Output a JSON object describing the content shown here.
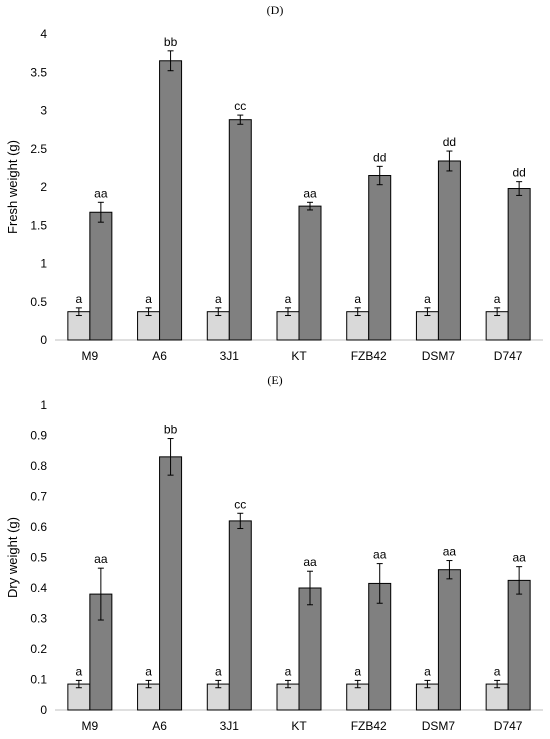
{
  "chart_data": [
    {
      "type": "bar",
      "panel_label": "(D)",
      "ylabel": "Fresh weight (g)",
      "categories": [
        "M9",
        "A6",
        "3J1",
        "KT",
        "FZB42",
        "DSM7",
        "D747"
      ],
      "ylim": [
        0,
        4
      ],
      "yticks": [
        "0",
        "0.5",
        "1",
        "1.5",
        "2",
        "2.5",
        "3",
        "3.5",
        "4"
      ],
      "series": [
        {
          "color": "#d9d9d9",
          "values": [
            0.37,
            0.37,
            0.37,
            0.37,
            0.37,
            0.37,
            0.37
          ],
          "errors": [
            0.05,
            0.05,
            0.05,
            0.05,
            0.05,
            0.05,
            0.05
          ],
          "letters": [
            "a",
            "a",
            "a",
            "a",
            "a",
            "a",
            "a"
          ]
        },
        {
          "color": "#808080",
          "values": [
            1.67,
            3.65,
            2.88,
            1.75,
            2.15,
            2.34,
            1.98
          ],
          "errors": [
            0.13,
            0.13,
            0.06,
            0.05,
            0.12,
            0.13,
            0.09
          ],
          "letters": [
            "aa",
            "bb",
            "cc",
            "aa",
            "dd",
            "dd",
            "dd"
          ]
        }
      ]
    },
    {
      "type": "bar",
      "panel_label": "(E)",
      "ylabel": "Dry weight (g)",
      "categories": [
        "M9",
        "A6",
        "3J1",
        "KT",
        "FZB42",
        "DSM7",
        "D747"
      ],
      "ylim": [
        0,
        1
      ],
      "yticks": [
        "0",
        "0.1",
        "0.2",
        "0.3",
        "0.4",
        "0.5",
        "0.6",
        "0.7",
        "0.8",
        "0.9",
        "1"
      ],
      "series": [
        {
          "color": "#d9d9d9",
          "values": [
            0.085,
            0.085,
            0.085,
            0.085,
            0.085,
            0.085,
            0.085
          ],
          "errors": [
            0.012,
            0.012,
            0.012,
            0.012,
            0.012,
            0.012,
            0.012
          ],
          "letters": [
            "a",
            "a",
            "a",
            "a",
            "a",
            "a",
            "a"
          ]
        },
        {
          "color": "#808080",
          "values": [
            0.38,
            0.83,
            0.62,
            0.4,
            0.415,
            0.46,
            0.425
          ],
          "errors": [
            0.085,
            0.06,
            0.025,
            0.055,
            0.065,
            0.03,
            0.045
          ],
          "letters": [
            "aa",
            "bb",
            "cc",
            "aa",
            "aa",
            "aa",
            "aa"
          ]
        }
      ]
    }
  ]
}
